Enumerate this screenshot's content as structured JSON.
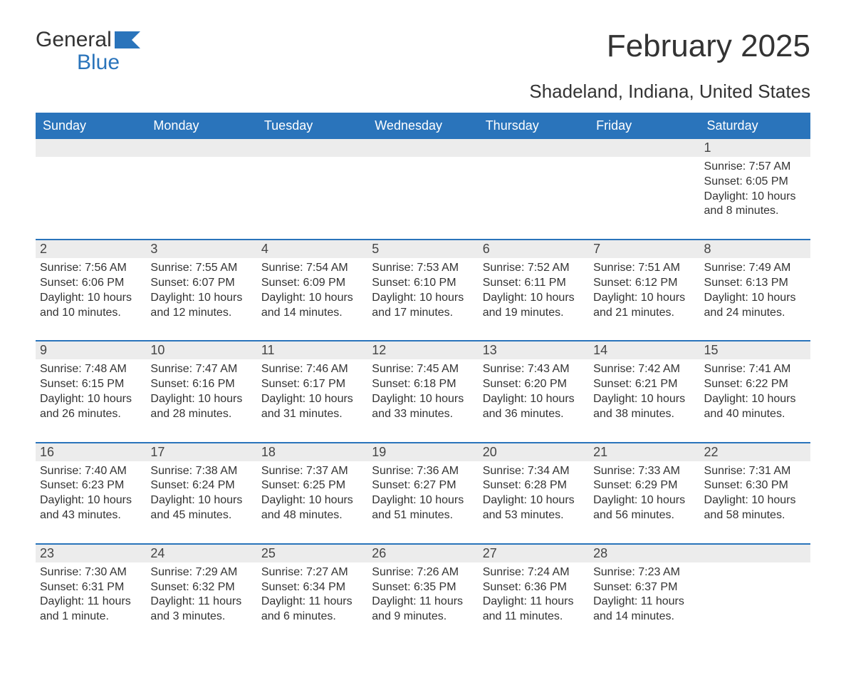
{
  "logo": {
    "text_general": "General",
    "text_blue": "Blue"
  },
  "title": "February 2025",
  "location": "Shadeland, Indiana, United States",
  "colors": {
    "header_bg": "#2a74bb",
    "header_text": "#ffffff",
    "daynum_bg": "#ececec",
    "text": "#333333",
    "divider": "#2a74bb",
    "background": "#ffffff"
  },
  "typography": {
    "title_fontsize": 44,
    "location_fontsize": 26,
    "dow_fontsize": 18,
    "daynum_fontsize": 18,
    "body_fontsize": 16,
    "logo_fontsize": 30
  },
  "days_of_week": [
    "Sunday",
    "Monday",
    "Tuesday",
    "Wednesday",
    "Thursday",
    "Friday",
    "Saturday"
  ],
  "weeks": [
    [
      null,
      null,
      null,
      null,
      null,
      null,
      {
        "n": "1",
        "sunrise": "Sunrise: 7:57 AM",
        "sunset": "Sunset: 6:05 PM",
        "daylight": "Daylight: 10 hours and 8 minutes."
      }
    ],
    [
      {
        "n": "2",
        "sunrise": "Sunrise: 7:56 AM",
        "sunset": "Sunset: 6:06 PM",
        "daylight": "Daylight: 10 hours and 10 minutes."
      },
      {
        "n": "3",
        "sunrise": "Sunrise: 7:55 AM",
        "sunset": "Sunset: 6:07 PM",
        "daylight": "Daylight: 10 hours and 12 minutes."
      },
      {
        "n": "4",
        "sunrise": "Sunrise: 7:54 AM",
        "sunset": "Sunset: 6:09 PM",
        "daylight": "Daylight: 10 hours and 14 minutes."
      },
      {
        "n": "5",
        "sunrise": "Sunrise: 7:53 AM",
        "sunset": "Sunset: 6:10 PM",
        "daylight": "Daylight: 10 hours and 17 minutes."
      },
      {
        "n": "6",
        "sunrise": "Sunrise: 7:52 AM",
        "sunset": "Sunset: 6:11 PM",
        "daylight": "Daylight: 10 hours and 19 minutes."
      },
      {
        "n": "7",
        "sunrise": "Sunrise: 7:51 AM",
        "sunset": "Sunset: 6:12 PM",
        "daylight": "Daylight: 10 hours and 21 minutes."
      },
      {
        "n": "8",
        "sunrise": "Sunrise: 7:49 AM",
        "sunset": "Sunset: 6:13 PM",
        "daylight": "Daylight: 10 hours and 24 minutes."
      }
    ],
    [
      {
        "n": "9",
        "sunrise": "Sunrise: 7:48 AM",
        "sunset": "Sunset: 6:15 PM",
        "daylight": "Daylight: 10 hours and 26 minutes."
      },
      {
        "n": "10",
        "sunrise": "Sunrise: 7:47 AM",
        "sunset": "Sunset: 6:16 PM",
        "daylight": "Daylight: 10 hours and 28 minutes."
      },
      {
        "n": "11",
        "sunrise": "Sunrise: 7:46 AM",
        "sunset": "Sunset: 6:17 PM",
        "daylight": "Daylight: 10 hours and 31 minutes."
      },
      {
        "n": "12",
        "sunrise": "Sunrise: 7:45 AM",
        "sunset": "Sunset: 6:18 PM",
        "daylight": "Daylight: 10 hours and 33 minutes."
      },
      {
        "n": "13",
        "sunrise": "Sunrise: 7:43 AM",
        "sunset": "Sunset: 6:20 PM",
        "daylight": "Daylight: 10 hours and 36 minutes."
      },
      {
        "n": "14",
        "sunrise": "Sunrise: 7:42 AM",
        "sunset": "Sunset: 6:21 PM",
        "daylight": "Daylight: 10 hours and 38 minutes."
      },
      {
        "n": "15",
        "sunrise": "Sunrise: 7:41 AM",
        "sunset": "Sunset: 6:22 PM",
        "daylight": "Daylight: 10 hours and 40 minutes."
      }
    ],
    [
      {
        "n": "16",
        "sunrise": "Sunrise: 7:40 AM",
        "sunset": "Sunset: 6:23 PM",
        "daylight": "Daylight: 10 hours and 43 minutes."
      },
      {
        "n": "17",
        "sunrise": "Sunrise: 7:38 AM",
        "sunset": "Sunset: 6:24 PM",
        "daylight": "Daylight: 10 hours and 45 minutes."
      },
      {
        "n": "18",
        "sunrise": "Sunrise: 7:37 AM",
        "sunset": "Sunset: 6:25 PM",
        "daylight": "Daylight: 10 hours and 48 minutes."
      },
      {
        "n": "19",
        "sunrise": "Sunrise: 7:36 AM",
        "sunset": "Sunset: 6:27 PM",
        "daylight": "Daylight: 10 hours and 51 minutes."
      },
      {
        "n": "20",
        "sunrise": "Sunrise: 7:34 AM",
        "sunset": "Sunset: 6:28 PM",
        "daylight": "Daylight: 10 hours and 53 minutes."
      },
      {
        "n": "21",
        "sunrise": "Sunrise: 7:33 AM",
        "sunset": "Sunset: 6:29 PM",
        "daylight": "Daylight: 10 hours and 56 minutes."
      },
      {
        "n": "22",
        "sunrise": "Sunrise: 7:31 AM",
        "sunset": "Sunset: 6:30 PM",
        "daylight": "Daylight: 10 hours and 58 minutes."
      }
    ],
    [
      {
        "n": "23",
        "sunrise": "Sunrise: 7:30 AM",
        "sunset": "Sunset: 6:31 PM",
        "daylight": "Daylight: 11 hours and 1 minute."
      },
      {
        "n": "24",
        "sunrise": "Sunrise: 7:29 AM",
        "sunset": "Sunset: 6:32 PM",
        "daylight": "Daylight: 11 hours and 3 minutes."
      },
      {
        "n": "25",
        "sunrise": "Sunrise: 7:27 AM",
        "sunset": "Sunset: 6:34 PM",
        "daylight": "Daylight: 11 hours and 6 minutes."
      },
      {
        "n": "26",
        "sunrise": "Sunrise: 7:26 AM",
        "sunset": "Sunset: 6:35 PM",
        "daylight": "Daylight: 11 hours and 9 minutes."
      },
      {
        "n": "27",
        "sunrise": "Sunrise: 7:24 AM",
        "sunset": "Sunset: 6:36 PM",
        "daylight": "Daylight: 11 hours and 11 minutes."
      },
      {
        "n": "28",
        "sunrise": "Sunrise: 7:23 AM",
        "sunset": "Sunset: 6:37 PM",
        "daylight": "Daylight: 11 hours and 14 minutes."
      },
      null
    ]
  ]
}
